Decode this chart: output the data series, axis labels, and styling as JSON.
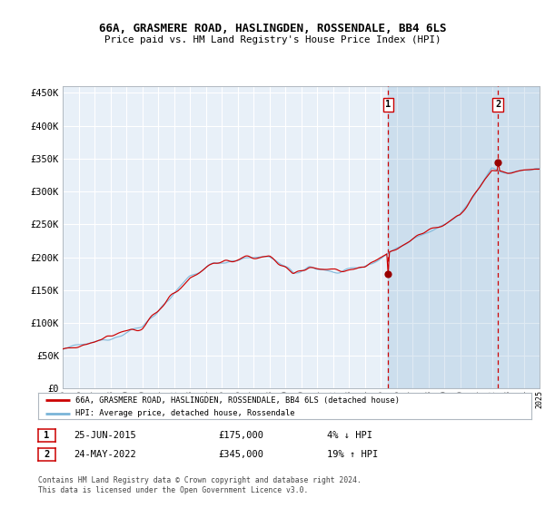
{
  "title": "66A, GRASMERE ROAD, HASLINGDEN, ROSSENDALE, BB4 6LS",
  "subtitle": "Price paid vs. HM Land Registry's House Price Index (HPI)",
  "ylim": [
    0,
    460000
  ],
  "yticks": [
    0,
    50000,
    100000,
    150000,
    200000,
    250000,
    300000,
    350000,
    400000,
    450000
  ],
  "ytick_labels": [
    "£0",
    "£50K",
    "£100K",
    "£150K",
    "£200K",
    "£250K",
    "£300K",
    "£350K",
    "£400K",
    "£450K"
  ],
  "background_color": "#ffffff",
  "plot_bg_color": "#e8f0f8",
  "grid_color": "#d0d8e0",
  "sale1_date": 2015.48,
  "sale1_price": 175000,
  "sale2_date": 2022.38,
  "sale2_price": 345000,
  "legend_property": "66A, GRASMERE ROAD, HASLINGDEN, ROSSENDALE, BB4 6LS (detached house)",
  "legend_hpi": "HPI: Average price, detached house, Rossendale",
  "annotation1_date": "25-JUN-2015",
  "annotation1_price": "£175,000",
  "annotation1_pct": "4% ↓ HPI",
  "annotation2_date": "24-MAY-2022",
  "annotation2_price": "£345,000",
  "annotation2_pct": "19% ↑ HPI",
  "footer": "Contains HM Land Registry data © Crown copyright and database right 2024.\nThis data is licensed under the Open Government Licence v3.0.",
  "hpi_color": "#7ab4d8",
  "price_color": "#cc0000",
  "sale_marker_color": "#990000",
  "highlight_alpha": 0.18,
  "start_year": 1995,
  "end_year": 2025
}
